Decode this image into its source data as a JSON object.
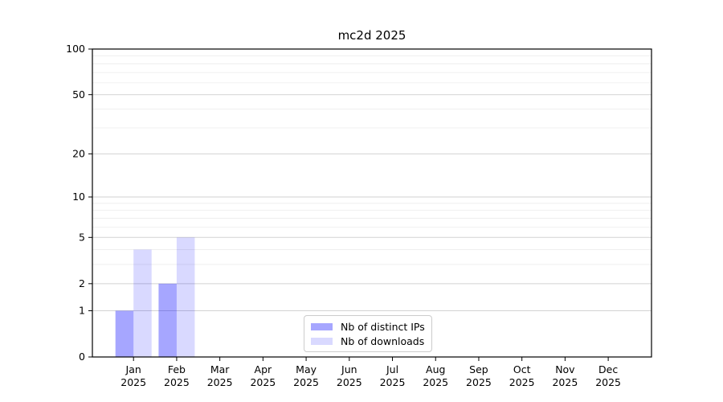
{
  "figure": {
    "background_color": "#ffffff",
    "text_color": "#000000"
  },
  "chart_data": {
    "type": "bar",
    "title": "mc2d 2025",
    "categories": [
      "Jan",
      "Feb",
      "Mar",
      "Apr",
      "May",
      "Jun",
      "Jul",
      "Aug",
      "Sep",
      "Oct",
      "Nov",
      "Dec"
    ],
    "year_label": "2025",
    "series": [
      {
        "name": "Nb of distinct IPs",
        "color": "#0000ff",
        "alpha": 0.35,
        "rendered_color": "#a6a6ff",
        "values": [
          1,
          2,
          0,
          0,
          0,
          0,
          0,
          0,
          0,
          0,
          0,
          0
        ]
      },
      {
        "name": "Nb of downloads",
        "color": "#0000ff",
        "alpha": 0.15,
        "rendered_color": "#d9d9ff",
        "values": [
          4,
          5,
          0,
          0,
          0,
          0,
          0,
          0,
          0,
          0,
          0,
          0
        ]
      }
    ],
    "xlabel": "",
    "ylabel": "",
    "yscale": "log1p",
    "ylim": [
      0,
      100
    ],
    "ytick_values": [
      0,
      1,
      2,
      5,
      10,
      20,
      50,
      100
    ],
    "ytick_labels": [
      "0",
      "1",
      "2",
      "5",
      "10",
      "20",
      "50",
      "100"
    ],
    "minor_ytick_values": [
      3,
      4,
      6,
      7,
      8,
      9,
      30,
      40,
      60,
      70,
      80,
      90
    ],
    "grid": "horizontal",
    "grid_major_color": "#d2d2d2",
    "grid_minor_color": "#ececec",
    "axis_color": "#000000",
    "legend_position": "bottom-center"
  }
}
